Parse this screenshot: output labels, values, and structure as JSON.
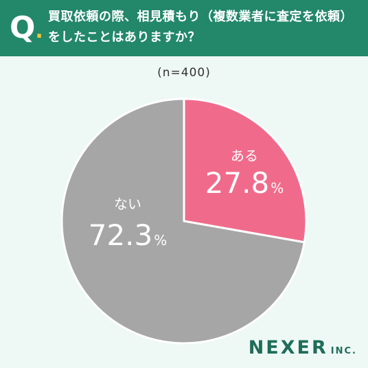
{
  "header": {
    "q_letter": "Q",
    "q_dot": ".",
    "question_line1": "買取依頼の際、相見積もり（複数業者に査定を依頼）",
    "question_line2": "をしたことはありますか？"
  },
  "sample_label": "(n=400)",
  "chart_data": {
    "type": "pie",
    "title": "買取依頼の際、相見積もり（複数業者に査定を依頼）をしたことはありますか？",
    "slices": [
      {
        "label": "ある",
        "value": 27.8,
        "value_text": "27.8",
        "unit": "%",
        "color": "#f06b8b"
      },
      {
        "label": "ない",
        "value": 72.3,
        "value_text": "72.3",
        "unit": "%",
        "color": "#a6a6a6"
      }
    ],
    "start_angle": "12 o'clock",
    "direction": "clockwise"
  },
  "brand": {
    "name": "NEXER",
    "suffix": "INC."
  },
  "colors": {
    "header_bg": "#23876a",
    "background": "#eef8f5",
    "accent_dot": "#f0c83a"
  }
}
